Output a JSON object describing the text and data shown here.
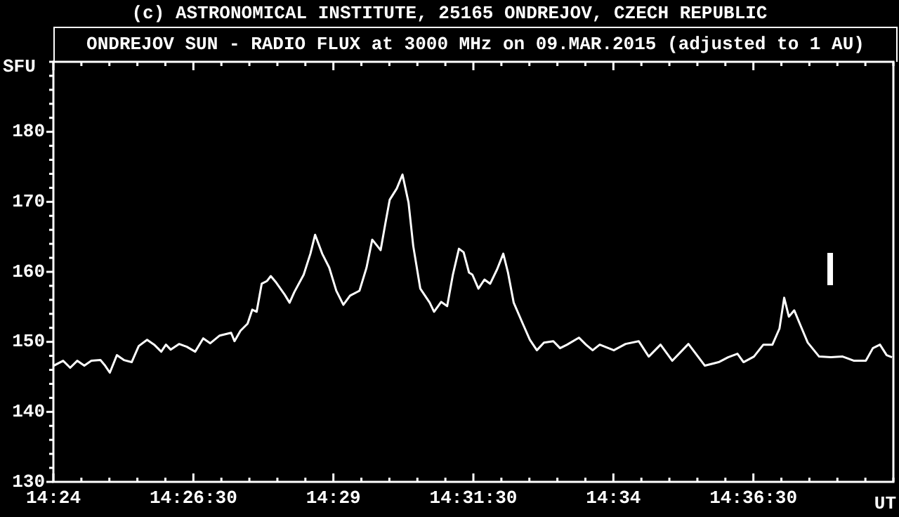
{
  "chart_data": {
    "type": "line",
    "title": "ONDREJOV SUN - RADIO FLUX at 3000 MHz on 09.MAR.2015 (adjusted to 1 AU)",
    "annotations": [
      "(c) ASTRONOMICAL INSTITUTE, 25165 ONDREJOV, CZECH REPUBLIC"
    ],
    "ylabel": "SFU",
    "xlabel": "UT",
    "color": "#ffffff",
    "x": [
      14.4001,
      14.4029,
      14.405,
      14.4071,
      14.4092,
      14.4113,
      14.414,
      14.4154,
      14.4168,
      14.4189,
      14.421,
      14.4233,
      14.4254,
      14.4279,
      14.43,
      14.4321,
      14.4335,
      14.4349,
      14.4374,
      14.4397,
      14.4422,
      14.4446,
      14.4467,
      14.4495,
      14.4529,
      14.4539,
      14.4557,
      14.4578,
      14.4592,
      14.4605,
      14.462,
      14.4636,
      14.4647,
      14.4661,
      14.4689,
      14.4703,
      14.4717,
      14.4745,
      14.4765,
      14.4779,
      14.48,
      14.4821,
      14.4842,
      14.4863,
      14.4883,
      14.4911,
      14.4932,
      14.4949,
      14.4974,
      14.4988,
      14.5001,
      14.5022,
      14.5039,
      14.5057,
      14.5071,
      14.5092,
      14.512,
      14.5133,
      14.5154,
      14.5172,
      14.5189,
      14.5207,
      14.5221,
      14.5237,
      14.5247,
      14.5265,
      14.5283,
      14.53,
      14.5321,
      14.5339,
      14.5353,
      14.537,
      14.5397,
      14.5418,
      14.5439,
      14.546,
      14.5488,
      14.5508,
      14.5529,
      14.5564,
      14.5585,
      14.5605,
      14.5626,
      14.5668,
      14.5703,
      14.5742,
      14.5772,
      14.5807,
      14.5842,
      14.589,
      14.5939,
      14.598,
      14.6008,
      14.6036,
      14.6054,
      14.6085,
      14.6113,
      14.614,
      14.6161,
      14.6175,
      14.6189,
      14.6205,
      14.6224,
      14.6245,
      14.6279,
      14.6314,
      14.6349,
      14.6383,
      14.6418,
      14.6439,
      14.646,
      14.648,
      14.6496
    ],
    "values": [
      146.6,
      147.3,
      146.3,
      147.3,
      146.6,
      147.3,
      147.4,
      146.6,
      145.6,
      148.1,
      147.4,
      147.1,
      149.4,
      150.3,
      149.6,
      148.6,
      149.6,
      148.9,
      149.7,
      149.3,
      148.6,
      150.5,
      149.8,
      150.9,
      151.3,
      150.1,
      151.6,
      152.6,
      154.6,
      154.3,
      158.3,
      158.7,
      159.4,
      158.6,
      156.7,
      155.6,
      157.1,
      159.6,
      162.6,
      165.3,
      162.6,
      160.6,
      157.3,
      155.3,
      156.6,
      157.3,
      160.6,
      164.6,
      163.1,
      166.9,
      170.3,
      171.9,
      173.9,
      169.9,
      163.7,
      157.6,
      155.6,
      154.3,
      155.7,
      155.1,
      159.6,
      163.3,
      162.8,
      159.9,
      159.6,
      157.6,
      158.9,
      158.3,
      160.4,
      162.6,
      159.9,
      155.6,
      152.6,
      150.3,
      148.8,
      149.9,
      150.1,
      149.1,
      149.6,
      150.6,
      149.6,
      148.8,
      149.6,
      148.8,
      149.7,
      150.1,
      147.9,
      149.6,
      147.3,
      149.7,
      146.6,
      147.1,
      147.8,
      148.3,
      147.1,
      147.9,
      149.6,
      149.6,
      151.9,
      156.3,
      153.6,
      154.5,
      152.3,
      149.9,
      147.9,
      147.8,
      147.9,
      147.3,
      147.3,
      149.1,
      149.6,
      148.1,
      147.8
    ],
    "xlim": [
      14.4,
      14.65
    ],
    "ylim": [
      130,
      190
    ],
    "xticks": [
      {
        "value": 14.4,
        "label": "14:24"
      },
      {
        "value": 14.408333,
        "label": null
      },
      {
        "value": 14.416667,
        "label": null
      },
      {
        "value": 14.425,
        "label": null
      },
      {
        "value": 14.433333,
        "label": null
      },
      {
        "value": 14.441667,
        "label": "14:26:30"
      },
      {
        "value": 14.45,
        "label": null
      },
      {
        "value": 14.458333,
        "label": null
      },
      {
        "value": 14.466667,
        "label": null
      },
      {
        "value": 14.475,
        "label": null
      },
      {
        "value": 14.483333,
        "label": "14:29"
      },
      {
        "value": 14.491667,
        "label": null
      },
      {
        "value": 14.5,
        "label": null
      },
      {
        "value": 14.508333,
        "label": null
      },
      {
        "value": 14.516667,
        "label": null
      },
      {
        "value": 14.525,
        "label": "14:31:30"
      },
      {
        "value": 14.533333,
        "label": null
      },
      {
        "value": 14.541667,
        "label": null
      },
      {
        "value": 14.55,
        "label": null
      },
      {
        "value": 14.558333,
        "label": null
      },
      {
        "value": 14.566667,
        "label": "14:34"
      },
      {
        "value": 14.575,
        "label": null
      },
      {
        "value": 14.583333,
        "label": null
      },
      {
        "value": 14.591667,
        "label": null
      },
      {
        "value": 14.6,
        "label": null
      },
      {
        "value": 14.608333,
        "label": "14:36:30"
      },
      {
        "value": 14.616667,
        "label": null
      },
      {
        "value": 14.625,
        "label": null
      },
      {
        "value": 14.633333,
        "label": null
      },
      {
        "value": 14.641667,
        "label": null
      },
      {
        "value": 14.65,
        "label": null
      }
    ],
    "yticks": [
      130,
      {
        "value": 132,
        "label": null
      },
      {
        "value": 134,
        "label": null
      },
      {
        "value": 136,
        "label": null
      },
      {
        "value": 138,
        "label": null
      },
      140,
      {
        "value": 142,
        "label": null
      },
      {
        "value": 144,
        "label": null
      },
      {
        "value": 146,
        "label": null
      },
      {
        "value": 148,
        "label": null
      },
      150,
      {
        "value": 152,
        "label": null
      },
      {
        "value": 154,
        "label": null
      },
      {
        "value": 156,
        "label": null
      },
      {
        "value": 158,
        "label": null
      },
      160,
      {
        "value": 162,
        "label": null
      },
      {
        "value": 164,
        "label": null
      },
      {
        "value": 166,
        "label": null
      },
      {
        "value": 168,
        "label": null
      },
      170,
      {
        "value": 172,
        "label": null
      },
      {
        "value": 174,
        "label": null
      },
      {
        "value": 176,
        "label": null
      },
      {
        "value": 178,
        "label": null
      },
      180,
      {
        "value": 182,
        "label": null
      },
      {
        "value": 184,
        "label": null
      },
      {
        "value": 186,
        "label": null
      },
      {
        "value": 188,
        "label": null
      },
      {
        "value": 190,
        "label": null
      }
    ]
  }
}
